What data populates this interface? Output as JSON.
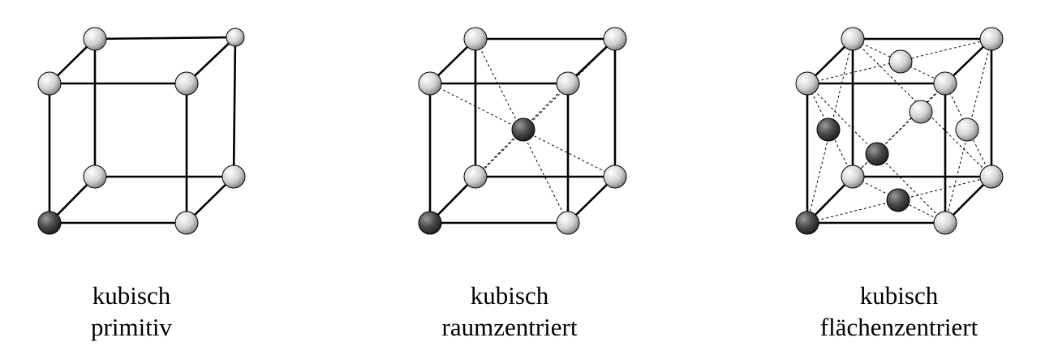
{
  "colors": {
    "sphere_light": "#d6d6d6",
    "sphere_dark": "#3f3f3f",
    "line": "#000000",
    "background": "#ffffff"
  },
  "structures": [
    {
      "name": "primitive",
      "title": "kubisch",
      "subtitle": "primitiv"
    },
    {
      "name": "body-centered",
      "title": "kubisch",
      "subtitle": "raumzentriert"
    },
    {
      "name": "face-centered",
      "title": "kubisch",
      "subtitle": "flächenzentriert"
    }
  ]
}
